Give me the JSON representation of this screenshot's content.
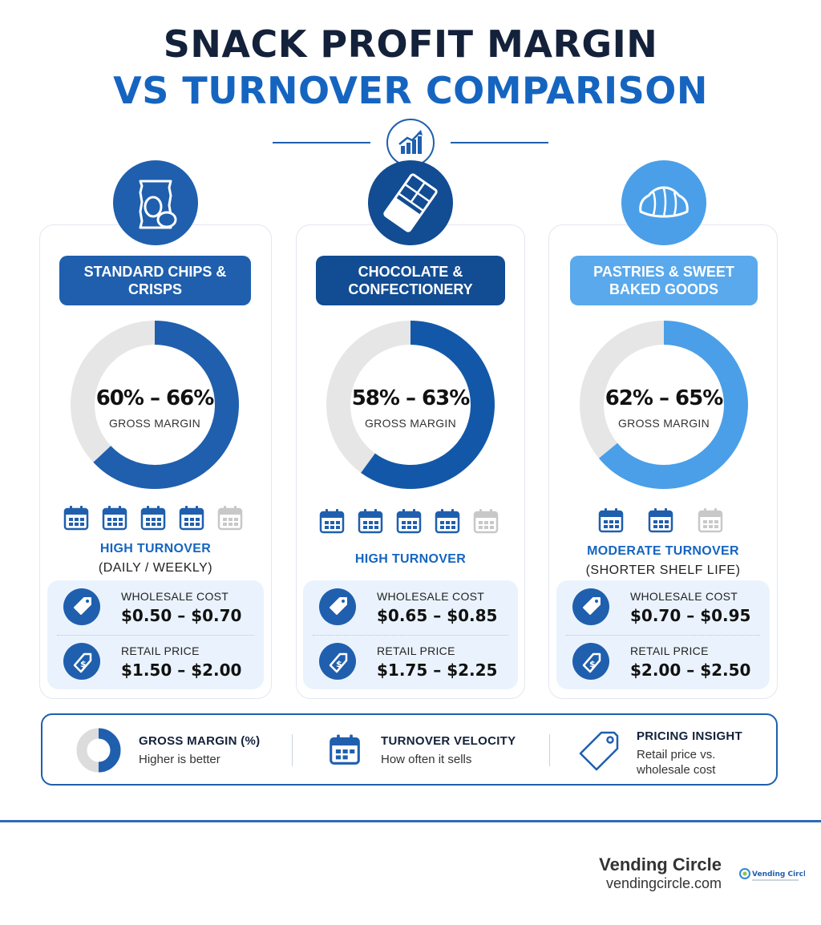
{
  "title": {
    "line1": "SNACK PROFIT MARGIN",
    "line2": "VS TURNOVER COMPARISON"
  },
  "header_icon": "growth-chart-icon",
  "cards": [
    {
      "category": "STANDARD CHIPS & CRISPS",
      "icon": "chips-bag-icon",
      "margin_range": "60% – 66%",
      "margin_label": "GROSS MARGIN",
      "margin_fraction": 0.63,
      "turnover_title": "HIGH TURNOVER",
      "turnover_sub": "(DAILY / WEEKLY)",
      "turnover_active": 4,
      "turnover_total": 5,
      "wholesale_label": "WHOLESALE COST",
      "wholesale_value": "$0.50 – $0.70",
      "retail_label": "RETAIL PRICE",
      "retail_value": "$1.50 – $2.00",
      "color": "#1f5fae",
      "label_color": "#1f5fae"
    },
    {
      "category": "CHOCOLATE & CONFECTIONERY",
      "icon": "chocolate-bar-icon",
      "margin_range": "58% – 63%",
      "margin_label": "GROSS MARGIN",
      "margin_fraction": 0.6,
      "turnover_title": "HIGH TURNOVER",
      "turnover_sub": "",
      "turnover_active": 4,
      "turnover_total": 5,
      "wholesale_label": "WHOLESALE COST",
      "wholesale_value": "$0.65 – $0.85",
      "retail_label": "RETAIL PRICE",
      "retail_value": "$1.75 – $2.25",
      "color": "#1358a8",
      "label_color": "#124c93"
    },
    {
      "category": "PASTRIES & SWEET BAKED GOODS",
      "icon": "croissant-icon",
      "margin_range": "62% – 65%",
      "margin_label": "GROSS MARGIN",
      "margin_fraction": 0.64,
      "turnover_title": "MODERATE TURNOVER",
      "turnover_sub": "(SHORTER SHELF LIFE)",
      "turnover_active": 2,
      "turnover_total": 3,
      "wholesale_label": "WHOLESALE COST",
      "wholesale_value": "$0.70 – $0.95",
      "retail_label": "RETAIL PRICE",
      "retail_value": "$2.00 – $2.50",
      "color": "#4a9fe8",
      "label_color": "#5aa9ec"
    }
  ],
  "legend": {
    "margin": {
      "title": "GROSS MARGIN (%)",
      "sub": "Higher is better",
      "icon": "donut-chart-icon"
    },
    "velocity": {
      "title": "TURNOVER VELOCITY",
      "sub": "How often it sells",
      "icon": "calendar-icon"
    },
    "pricing": {
      "title": "PRICING INSIGHT",
      "sub1": "Retail price vs.",
      "sub2": "wholesale cost",
      "icon": "price-tag-icon"
    }
  },
  "brand": {
    "name": "Vending Circle",
    "url": "vendingcircle.com",
    "logo_text": "Vending Circle"
  },
  "colors": {
    "navy": "#14213a",
    "accent": "#1565c0",
    "track": "#e6e6e6"
  }
}
